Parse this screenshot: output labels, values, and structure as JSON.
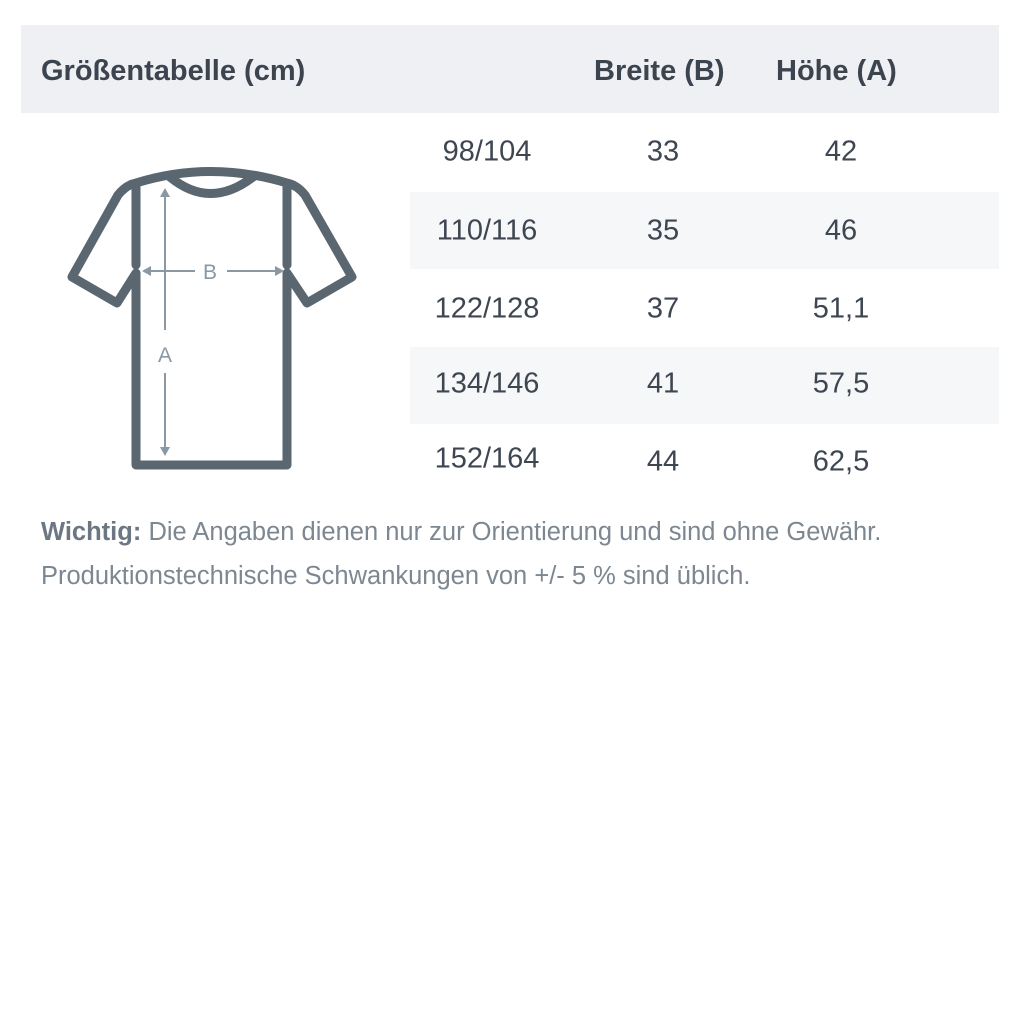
{
  "header": {
    "title": "Größentabelle (cm)",
    "col_width": "Breite (B)",
    "col_height": "Höhe (A)"
  },
  "diagram": {
    "label_width": "B",
    "label_height": "A",
    "outline_color": "#5a6770",
    "arrow_color": "#8a98a3"
  },
  "rows": [
    {
      "size": "98/104",
      "width": "33",
      "height": "42"
    },
    {
      "size": "110/116",
      "width": "35",
      "height": "46"
    },
    {
      "size": "122/128",
      "width": "37",
      "height": "51,1"
    },
    {
      "size": "134/146",
      "width": "41",
      "height": "57,5"
    },
    {
      "size": "152/164",
      "width": "44",
      "height": "62,5"
    }
  ],
  "note": {
    "label": "Wichtig:",
    "line1": "Die Angaben dienen nur zur Orientierung und sind ohne Gewähr.",
    "line2": "Produktionstechnische Schwankungen von +/- 5 % sind üblich."
  }
}
